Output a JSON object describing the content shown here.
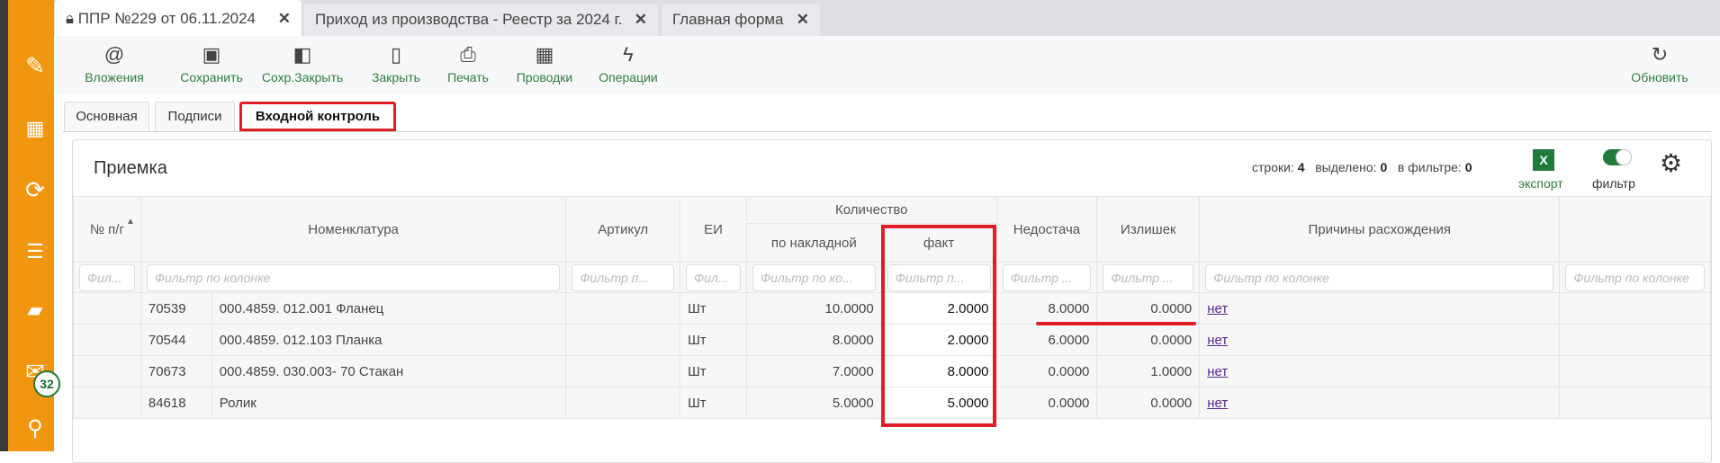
{
  "sidebar": {
    "icons": [
      "pencil-icon",
      "qr-code-icon",
      "sync-icon",
      "download-list-icon",
      "folder-icon",
      "mail-icon",
      "search-icon"
    ],
    "mail_badge": "32",
    "accent": "#f0960f"
  },
  "tabs": [
    {
      "label": "ППР №229 от 06.11.2024",
      "active": true
    },
    {
      "label": "Приход из производства - Реестр за 2024 г."
    },
    {
      "label": "Главная форма"
    }
  ],
  "toolbar": {
    "items": [
      "Вложения",
      "Сохранить",
      "Сохр.Закрыть",
      "Закрыть",
      "Печать",
      "Проводки",
      "Операции"
    ],
    "refresh": "Обновить"
  },
  "subtabs": [
    "Основная",
    "Подписи",
    "Входной контроль"
  ],
  "panel": {
    "title": "Приемка",
    "rows_label": "строки:",
    "rows": "4",
    "selected_label": "выделено:",
    "selected": "0",
    "filtered_label": "в фильтре:",
    "filtered": "0",
    "export": "экспорт",
    "export_icon": "X",
    "filter": "фильтр"
  },
  "table": {
    "group_header": "Количество",
    "headers": {
      "num": "№ п/г",
      "nomen": "Номенклатура",
      "article": "Артикул",
      "unit": "ЕИ",
      "by_invoice": "по накладной",
      "fact": "факт",
      "shortage": "Недостача",
      "surplus": "Излишек",
      "reasons": "Причины расхождения"
    },
    "filters": {
      "num": "Фил...",
      "nomen": "Фильтр по колонке",
      "article": "Фильтр п...",
      "unit": "Фил...",
      "by_invoice": "Фильтр по ко...",
      "fact": "Фильтр п...",
      "shortage": "Фильтр ...",
      "surplus": "Фильтр ...",
      "reasons": "Фильтр по колонке",
      "extra": "Фильтр по колонке"
    },
    "rows": [
      {
        "code": "70539",
        "name": "000.4859. 012.001 Фланец",
        "unit": "Шт",
        "by_invoice": "10.0000",
        "fact": "2.0000",
        "shortage": "8.0000",
        "surplus": "0.0000",
        "reason": "нет"
      },
      {
        "code": "70544",
        "name": "000.4859. 012.103 Планка",
        "unit": "Шт",
        "by_invoice": "8.0000",
        "fact": "2.0000",
        "shortage": "6.0000",
        "surplus": "0.0000",
        "reason": "нет"
      },
      {
        "code": "70673",
        "name": "000.4859. 030.003- 70 Стакан",
        "unit": "Шт",
        "by_invoice": "7.0000",
        "fact": "8.0000",
        "shortage": "0.0000",
        "surplus": "1.0000",
        "reason": "нет"
      },
      {
        "code": "84618",
        "name": "Ролик",
        "unit": "Шт",
        "by_invoice": "5.0000",
        "fact": "5.0000",
        "shortage": "0.0000",
        "surplus": "0.0000",
        "reason": "нет"
      }
    ]
  }
}
